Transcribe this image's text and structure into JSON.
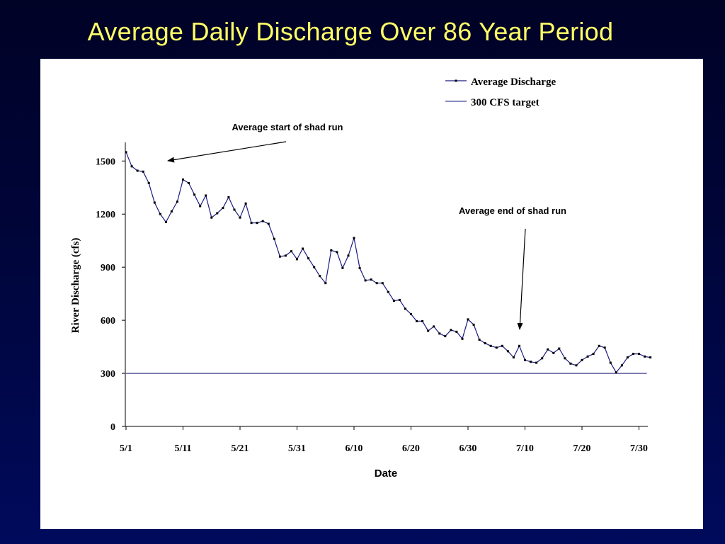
{
  "slide": {
    "title": "Average Daily Discharge Over 86 Year Period"
  },
  "colors": {
    "background": "#000a5c",
    "title": "#ffff66",
    "series": "#1a1a80",
    "panel": "#ffffff"
  },
  "chart_data": {
    "type": "line",
    "title": "",
    "xlabel": "Date",
    "ylabel": "River Discharge (cfs)",
    "ylim": [
      0,
      1600
    ],
    "xlim": [
      "5/1",
      "7/30"
    ],
    "yticks": [
      0,
      300,
      600,
      900,
      1200,
      1500
    ],
    "xtick_labels": [
      "5/1",
      "5/11",
      "5/21",
      "5/31",
      "6/10",
      "6/20",
      "6/30",
      "7/10",
      "7/20",
      "7/30"
    ],
    "legend_position": "top-right",
    "x_start_label": "5/1",
    "series": [
      {
        "name": "Average Discharge",
        "values": [
          1550,
          1470,
          1445,
          1440,
          1375,
          1265,
          1200,
          1155,
          1215,
          1270,
          1395,
          1375,
          1310,
          1245,
          1305,
          1180,
          1205,
          1235,
          1295,
          1225,
          1180,
          1260,
          1150,
          1150,
          1160,
          1145,
          1060,
          960,
          965,
          990,
          945,
          1005,
          950,
          900,
          850,
          810,
          995,
          985,
          895,
          965,
          1065,
          895,
          825,
          830,
          810,
          810,
          760,
          710,
          715,
          665,
          635,
          595,
          595,
          540,
          565,
          525,
          510,
          545,
          535,
          495,
          605,
          575,
          490,
          470,
          455,
          445,
          455,
          425,
          390,
          455,
          375,
          365,
          360,
          385,
          435,
          415,
          440,
          385,
          355,
          345,
          375,
          395,
          410,
          455,
          445,
          360,
          305,
          345,
          390,
          410,
          410,
          395,
          390
        ]
      },
      {
        "name": "300 CFS target",
        "values": [
          300,
          300
        ]
      }
    ],
    "annotations": [
      {
        "text": "Average start of shad run"
      },
      {
        "text": "Average end of shad run"
      }
    ]
  }
}
